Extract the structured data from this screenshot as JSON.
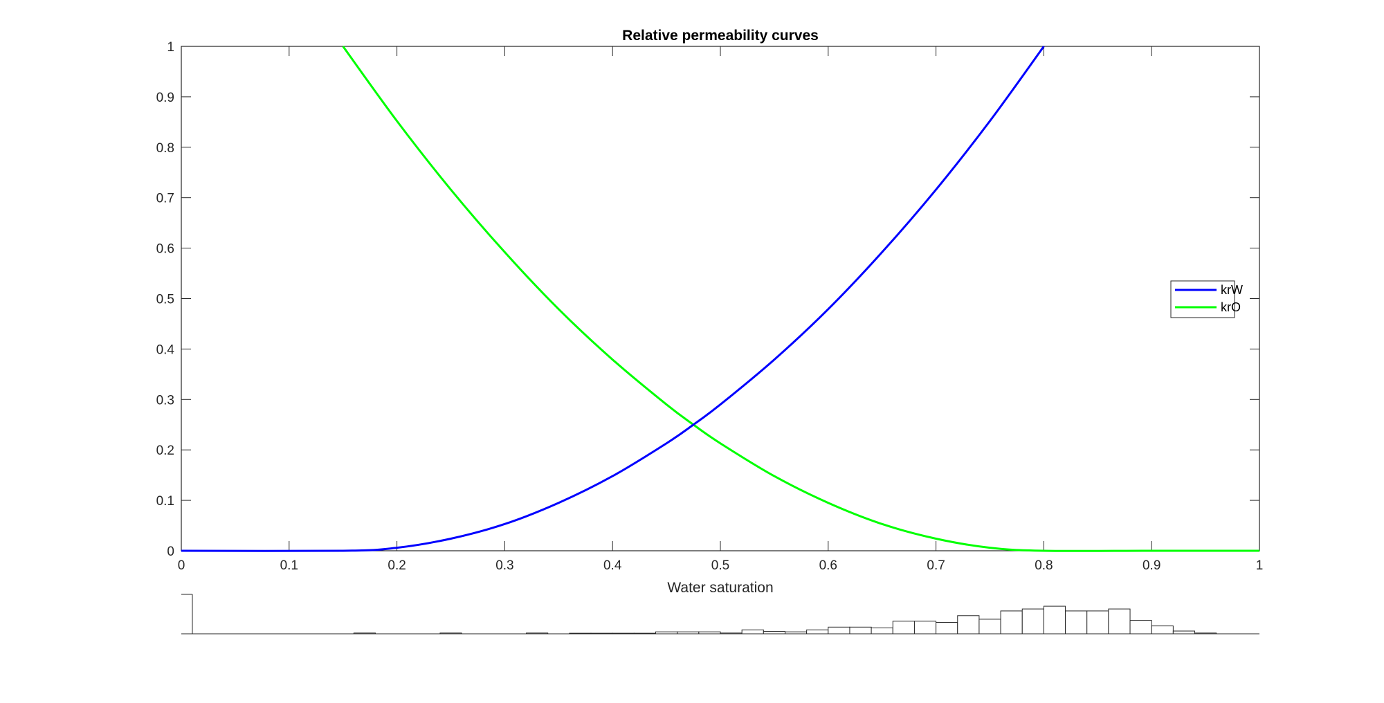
{
  "chart_data": [
    {
      "type": "line",
      "title": "Relative permeability curves",
      "xlabel": "Water saturation",
      "ylabel": "",
      "xlim": [
        0,
        1
      ],
      "ylim": [
        0,
        1
      ],
      "xticks": [
        0,
        0.1,
        0.2,
        0.3,
        0.4,
        0.5,
        0.6,
        0.7,
        0.8,
        0.9,
        1
      ],
      "xtick_labels": [
        "0",
        "0.1",
        "0.2",
        "0.3",
        "0.4",
        "0.5",
        "0.6",
        "0.7",
        "0.8",
        "0.9",
        "1"
      ],
      "yticks": [
        0,
        0.1,
        0.2,
        0.3,
        0.4,
        0.5,
        0.6,
        0.7,
        0.8,
        0.9,
        1
      ],
      "ytick_labels": [
        "0",
        "0.1",
        "0.2",
        "0.3",
        "0.4",
        "0.5",
        "0.6",
        "0.7",
        "0.8",
        "0.9",
        "1"
      ],
      "grid": false,
      "legend_position": "right",
      "series": [
        {
          "name": "krW",
          "color": "#0000ff",
          "x": [
            0,
            0.15,
            0.2,
            0.25,
            0.3,
            0.35,
            0.4,
            0.45,
            0.475,
            0.5,
            0.55,
            0.6,
            0.65,
            0.7,
            0.75,
            0.8
          ],
          "y": [
            0,
            0,
            0.006,
            0.024,
            0.053,
            0.095,
            0.148,
            0.213,
            0.25,
            0.29,
            0.379,
            0.479,
            0.592,
            0.716,
            0.852,
            1.0
          ]
        },
        {
          "name": "krO",
          "color": "#00ff00",
          "x": [
            0.15,
            0.2,
            0.25,
            0.3,
            0.35,
            0.4,
            0.45,
            0.475,
            0.5,
            0.55,
            0.6,
            0.65,
            0.7,
            0.75,
            0.8,
            0.9,
            1.0
          ],
          "y": [
            1.0,
            0.852,
            0.716,
            0.592,
            0.479,
            0.379,
            0.29,
            0.25,
            0.213,
            0.148,
            0.095,
            0.053,
            0.024,
            0.006,
            0,
            0,
            0
          ]
        }
      ]
    },
    {
      "type": "bar",
      "title": "",
      "xlim": [
        0,
        1
      ],
      "ylim": [
        0,
        1
      ],
      "bin_width": 0.02,
      "bins": [
        {
          "x": 0.17,
          "value": 0.02
        },
        {
          "x": 0.25,
          "value": 0.02
        },
        {
          "x": 0.33,
          "value": 0.02
        },
        {
          "x": 0.37,
          "value": 0.015
        },
        {
          "x": 0.39,
          "value": 0.015
        },
        {
          "x": 0.41,
          "value": 0.015
        },
        {
          "x": 0.43,
          "value": 0.015
        },
        {
          "x": 0.45,
          "value": 0.05
        },
        {
          "x": 0.47,
          "value": 0.05
        },
        {
          "x": 0.49,
          "value": 0.05
        },
        {
          "x": 0.51,
          "value": 0.02
        },
        {
          "x": 0.53,
          "value": 0.1
        },
        {
          "x": 0.55,
          "value": 0.06
        },
        {
          "x": 0.57,
          "value": 0.05
        },
        {
          "x": 0.59,
          "value": 0.1
        },
        {
          "x": 0.61,
          "value": 0.17
        },
        {
          "x": 0.63,
          "value": 0.17
        },
        {
          "x": 0.65,
          "value": 0.15
        },
        {
          "x": 0.67,
          "value": 0.32
        },
        {
          "x": 0.69,
          "value": 0.32
        },
        {
          "x": 0.71,
          "value": 0.29
        },
        {
          "x": 0.73,
          "value": 0.46
        },
        {
          "x": 0.75,
          "value": 0.37
        },
        {
          "x": 0.77,
          "value": 0.58
        },
        {
          "x": 0.79,
          "value": 0.63
        },
        {
          "x": 0.81,
          "value": 0.7
        },
        {
          "x": 0.83,
          "value": 0.58
        },
        {
          "x": 0.85,
          "value": 0.58
        },
        {
          "x": 0.87,
          "value": 0.63
        },
        {
          "x": 0.89,
          "value": 0.34
        },
        {
          "x": 0.91,
          "value": 0.2
        },
        {
          "x": 0.93,
          "value": 0.07
        },
        {
          "x": 0.95,
          "value": 0.02
        }
      ]
    }
  ]
}
